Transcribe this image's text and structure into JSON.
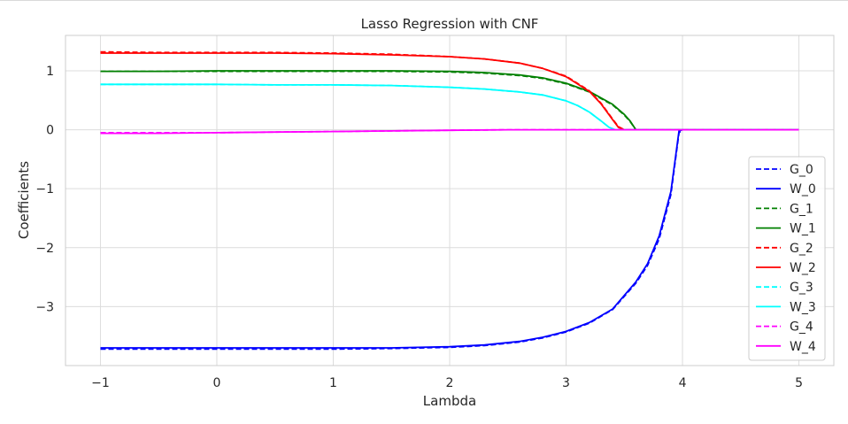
{
  "chart_data": {
    "type": "line",
    "title": "Lasso Regression with CNF",
    "xlabel": "Lambda",
    "ylabel": "Coefficients",
    "xlim": [
      -1.3,
      5.3
    ],
    "ylim": [
      -4.0,
      1.6
    ],
    "xticks": [
      -1,
      0,
      1,
      2,
      3,
      4,
      5
    ],
    "xtick_labels": [
      "−1",
      "0",
      "1",
      "2",
      "3",
      "4",
      "5"
    ],
    "yticks": [
      -3,
      -2,
      -1,
      0,
      1
    ],
    "ytick_labels": [
      "−3",
      "−2",
      "−1",
      "0",
      "1"
    ],
    "grid": true,
    "legend_position": "lower right",
    "series": [
      {
        "name": "G_0",
        "style": "dashed",
        "color": "#0000ff",
        "x": [
          -1,
          -0.5,
          0,
          0.5,
          1,
          1.5,
          2,
          2.3,
          2.6,
          2.8,
          3.0,
          3.2,
          3.4,
          3.6,
          3.7,
          3.8,
          3.9,
          3.97,
          4.0,
          4.5,
          5
        ],
        "y": [
          -3.72,
          -3.72,
          -3.72,
          -3.72,
          -3.72,
          -3.71,
          -3.69,
          -3.66,
          -3.6,
          -3.53,
          -3.43,
          -3.28,
          -3.05,
          -2.6,
          -2.3,
          -1.85,
          -1.1,
          -0.05,
          0,
          0,
          0
        ]
      },
      {
        "name": "W_0",
        "style": "solid",
        "color": "#0000ff",
        "x": [
          -1,
          -0.5,
          0,
          0.5,
          1,
          1.5,
          2,
          2.3,
          2.6,
          2.8,
          3.0,
          3.2,
          3.4,
          3.6,
          3.7,
          3.8,
          3.9,
          3.97,
          4.0,
          4.5,
          5
        ],
        "y": [
          -3.7,
          -3.7,
          -3.7,
          -3.7,
          -3.7,
          -3.7,
          -3.68,
          -3.65,
          -3.59,
          -3.52,
          -3.42,
          -3.27,
          -3.04,
          -2.58,
          -2.27,
          -1.8,
          -1.05,
          -0.02,
          0,
          0,
          0
        ]
      },
      {
        "name": "G_1",
        "style": "dashed",
        "color": "#008000",
        "x": [
          -1,
          -0.5,
          0,
          0.5,
          1,
          1.5,
          2,
          2.3,
          2.6,
          2.8,
          3.0,
          3.2,
          3.4,
          3.5,
          3.55,
          3.6,
          4.0,
          4.5,
          5
        ],
        "y": [
          0.99,
          0.99,
          0.99,
          0.99,
          0.99,
          0.99,
          0.98,
          0.96,
          0.92,
          0.87,
          0.78,
          0.64,
          0.42,
          0.25,
          0.14,
          0,
          0,
          0,
          0
        ]
      },
      {
        "name": "W_1",
        "style": "solid",
        "color": "#008000",
        "x": [
          -1,
          -0.5,
          0,
          0.5,
          1,
          1.5,
          2,
          2.3,
          2.6,
          2.8,
          3.0,
          3.2,
          3.4,
          3.5,
          3.55,
          3.6,
          4.0,
          4.5,
          5
        ],
        "y": [
          0.99,
          0.99,
          1.0,
          1.0,
          1.0,
          1.0,
          0.99,
          0.97,
          0.93,
          0.88,
          0.79,
          0.65,
          0.43,
          0.26,
          0.15,
          0,
          0,
          0,
          0
        ]
      },
      {
        "name": "G_2",
        "style": "dashed",
        "color": "#ff0000",
        "x": [
          -1,
          -0.5,
          0,
          0.5,
          1,
          1.5,
          2,
          2.3,
          2.6,
          2.8,
          3.0,
          3.2,
          3.3,
          3.4,
          3.45,
          3.5,
          4.0,
          4.5,
          5
        ],
        "y": [
          1.32,
          1.31,
          1.31,
          1.31,
          1.3,
          1.28,
          1.24,
          1.2,
          1.13,
          1.04,
          0.91,
          0.66,
          0.45,
          0.18,
          0.05,
          0,
          0,
          0,
          0
        ]
      },
      {
        "name": "W_2",
        "style": "solid",
        "color": "#ff0000",
        "x": [
          -1,
          -0.5,
          0,
          0.5,
          1,
          1.5,
          2,
          2.3,
          2.6,
          2.8,
          3.0,
          3.2,
          3.3,
          3.4,
          3.45,
          3.5,
          4.0,
          4.5,
          5
        ],
        "y": [
          1.3,
          1.3,
          1.3,
          1.3,
          1.29,
          1.27,
          1.24,
          1.2,
          1.13,
          1.04,
          0.9,
          0.65,
          0.44,
          0.17,
          0.04,
          0,
          0,
          0,
          0
        ]
      },
      {
        "name": "G_3",
        "style": "dashed",
        "color": "#00ffff",
        "x": [
          -1,
          -0.5,
          0,
          0.5,
          1,
          1.5,
          2,
          2.3,
          2.6,
          2.8,
          3.0,
          3.1,
          3.2,
          3.3,
          3.37,
          3.42,
          4.0,
          4.5,
          5
        ],
        "y": [
          0.77,
          0.77,
          0.77,
          0.76,
          0.76,
          0.75,
          0.72,
          0.69,
          0.64,
          0.59,
          0.49,
          0.41,
          0.3,
          0.15,
          0.04,
          0,
          0,
          0,
          0
        ]
      },
      {
        "name": "W_3",
        "style": "solid",
        "color": "#00ffff",
        "x": [
          -1,
          -0.5,
          0,
          0.5,
          1,
          1.5,
          2,
          2.3,
          2.6,
          2.8,
          3.0,
          3.1,
          3.2,
          3.3,
          3.37,
          3.42,
          4.0,
          4.5,
          5
        ],
        "y": [
          0.77,
          0.77,
          0.77,
          0.76,
          0.76,
          0.75,
          0.72,
          0.69,
          0.64,
          0.59,
          0.49,
          0.41,
          0.3,
          0.15,
          0.04,
          0,
          0,
          0,
          0
        ]
      },
      {
        "name": "G_4",
        "style": "dashed",
        "color": "#ff00ff",
        "x": [
          -1,
          -0.5,
          0,
          0.5,
          1,
          1.5,
          2,
          2.5,
          3,
          3.5,
          4,
          4.5,
          5
        ],
        "y": [
          -0.05,
          -0.05,
          -0.05,
          -0.04,
          -0.03,
          -0.02,
          -0.01,
          0,
          0,
          0,
          0,
          0,
          0
        ]
      },
      {
        "name": "W_4",
        "style": "solid",
        "color": "#ff00ff",
        "x": [
          -1,
          -0.5,
          0,
          0.5,
          1,
          1.5,
          2,
          2.5,
          3,
          3.5,
          4,
          4.5,
          5
        ],
        "y": [
          -0.06,
          -0.06,
          -0.05,
          -0.04,
          -0.03,
          -0.02,
          -0.01,
          0,
          0,
          0,
          0,
          0,
          0
        ]
      }
    ]
  }
}
